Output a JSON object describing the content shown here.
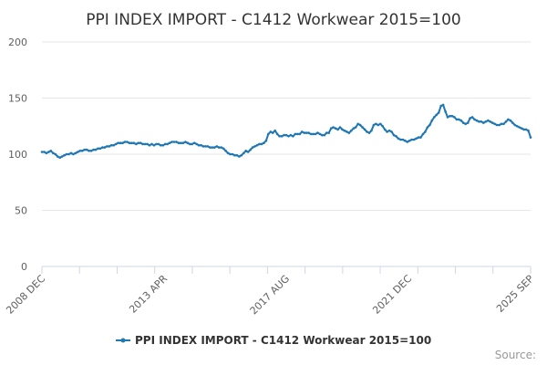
{
  "chart_data": {
    "type": "line",
    "title": "PPI INDEX IMPORT - C1412 Workwear 2015=100",
    "xlabel": "",
    "ylabel": "",
    "ylim": [
      0,
      200
    ],
    "yticks": [
      0,
      50,
      100,
      150,
      200
    ],
    "xticks": [
      "2008 DEC",
      "2013 APR",
      "2017 AUG",
      "2021 DEC",
      "2025 SEP"
    ],
    "grid": true,
    "legend_position": "bottom",
    "credit": "Source:",
    "colors": {
      "series": "#1f77b4",
      "grid": "#e6e6e6",
      "axis": "#ccd6eb",
      "text": "#606060",
      "title": "#333333"
    },
    "x_start": "2008-12",
    "x_end": "2025-09",
    "series": [
      {
        "name": "PPI INDEX IMPORT - C1412 Workwear 2015=100",
        "values": [
          102,
          102,
          101,
          102,
          103,
          101,
          100,
          98,
          97,
          98,
          99,
          100,
          100,
          101,
          100,
          101,
          102,
          103,
          103,
          104,
          104,
          103,
          103,
          104,
          104,
          105,
          105,
          106,
          106,
          107,
          107,
          108,
          108,
          109,
          110,
          110,
          110,
          111,
          111,
          110,
          110,
          110,
          109,
          110,
          110,
          109,
          109,
          109,
          108,
          109,
          108,
          109,
          109,
          108,
          108,
          109,
          109,
          110,
          111,
          111,
          111,
          110,
          110,
          110,
          111,
          110,
          109,
          109,
          110,
          109,
          108,
          108,
          107,
          107,
          107,
          106,
          106,
          106,
          107,
          106,
          106,
          105,
          103,
          101,
          100,
          100,
          99,
          99,
          98,
          99,
          101,
          103,
          102,
          104,
          106,
          107,
          108,
          109,
          109,
          110,
          112,
          118,
          120,
          119,
          121,
          118,
          116,
          116,
          117,
          117,
          116,
          117,
          116,
          118,
          118,
          118,
          120,
          119,
          119,
          119,
          118,
          118,
          118,
          119,
          118,
          117,
          117,
          119,
          119,
          123,
          124,
          123,
          122,
          124,
          122,
          121,
          120,
          119,
          121,
          123,
          124,
          127,
          126,
          124,
          122,
          120,
          119,
          121,
          126,
          127,
          126,
          127,
          125,
          122,
          120,
          121,
          120,
          117,
          116,
          114,
          113,
          113,
          112,
          111,
          112,
          113,
          113,
          114,
          115,
          115,
          118,
          120,
          124,
          126,
          130,
          133,
          135,
          137,
          143,
          144,
          138,
          133,
          134,
          134,
          133,
          131,
          131,
          130,
          128,
          127,
          128,
          132,
          133,
          131,
          130,
          129,
          129,
          128,
          129,
          130,
          129,
          128,
          127,
          126,
          126,
          127,
          127,
          129,
          131,
          130,
          128,
          126,
          125,
          124,
          123,
          122,
          122,
          121,
          115
        ]
      }
    ]
  }
}
